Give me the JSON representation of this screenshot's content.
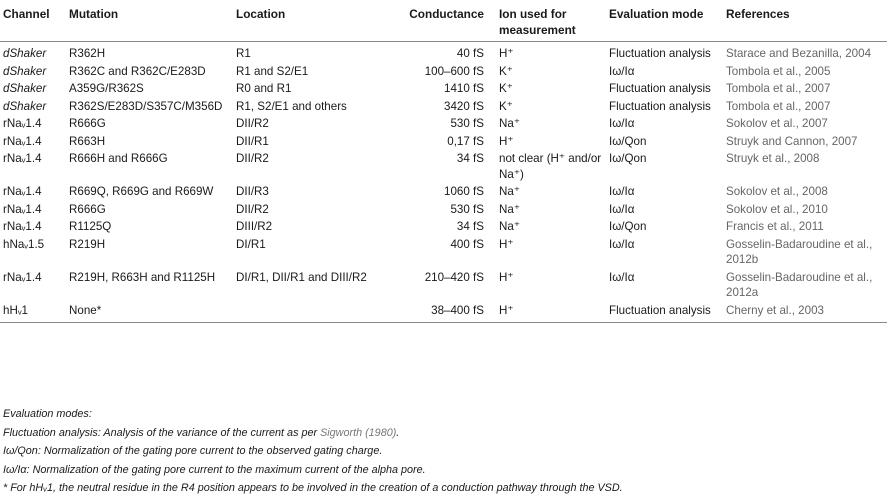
{
  "table": {
    "headers": [
      "Channel",
      "Mutation",
      "Location",
      "Conductance",
      "Ion used for measurement",
      "Evaluation mode",
      "References"
    ],
    "rows": [
      {
        "channel": "dShaker",
        "channel_italic": true,
        "mutation": "R362H",
        "location": "R1",
        "conductance": "40 fS",
        "ion": "H⁺",
        "mode": "Fluctuation analysis",
        "reference": "Starace and Bezanilla, 2004"
      },
      {
        "channel": "dShaker",
        "channel_italic": true,
        "mutation": "R362C and R362C/E283D",
        "location": "R1 and S2/E1",
        "conductance": "100–600 fS",
        "ion": "K⁺",
        "mode": "Iω/Iα",
        "reference": "Tombola et al., 2005"
      },
      {
        "channel": "dShaker",
        "channel_italic": true,
        "mutation": "A359G/R362S",
        "location": "R0 and R1",
        "conductance": "1410 fS",
        "ion": "K⁺",
        "mode": "Fluctuation analysis",
        "reference": "Tombola et al., 2007"
      },
      {
        "channel": "dShaker",
        "channel_italic": true,
        "mutation": "R362S/E283D/S357C/M356D",
        "location": "R1, S2/E1 and others",
        "conductance": "3420 fS",
        "ion": "K⁺",
        "mode": "Fluctuation analysis",
        "reference": "Tombola et al., 2007"
      },
      {
        "channel": "rNaᵥ1.4",
        "channel_italic": false,
        "mutation": "R666G",
        "location": "DII/R2",
        "conductance": "530 fS",
        "ion": "Na⁺",
        "mode": "Iω/Iα",
        "reference": "Sokolov et al., 2007"
      },
      {
        "channel": "rNaᵥ1.4",
        "channel_italic": false,
        "mutation": "R663H",
        "location": "DII/R1",
        "conductance": "0,17 fS",
        "ion": "H⁺",
        "mode": "Iω/Qon",
        "reference": "Struyk and Cannon, 2007"
      },
      {
        "channel": "rNaᵥ1.4",
        "channel_italic": false,
        "mutation": "R666H and R666G",
        "location": "DII/R2",
        "conductance": "34 fS",
        "ion": "not clear (H⁺ and/or Na⁺)",
        "mode": "Iω/Qon",
        "reference": "Struyk et al., 2008"
      },
      {
        "channel": "rNaᵥ1.4",
        "channel_italic": false,
        "mutation": "R669Q, R669G and R669W",
        "location": "DII/R3",
        "conductance": "1060 fS",
        "ion": "Na⁺",
        "mode": "Iω/Iα",
        "reference": "Sokolov et al., 2008"
      },
      {
        "channel": "rNaᵥ1.4",
        "channel_italic": false,
        "mutation": "R666G",
        "location": "DII/R2",
        "conductance": "530 fS",
        "ion": "Na⁺",
        "mode": "Iω/Iα",
        "reference": "Sokolov et al., 2010"
      },
      {
        "channel": "rNaᵥ1.4",
        "channel_italic": false,
        "mutation": "R1125Q",
        "location": "DIII/R2",
        "conductance": "34 fS",
        "ion": "Na⁺",
        "mode": "Iω/Qon",
        "reference": "Francis et al., 2011"
      },
      {
        "channel": "hNaᵥ1.5",
        "channel_italic": false,
        "mutation": "R219H",
        "location": "DI/R1",
        "conductance": "400 fS",
        "ion": "H⁺",
        "mode": "Iω/Iα",
        "reference": "Gosselin-Badaroudine et al., 2012b"
      },
      {
        "channel": "rNaᵥ1.4",
        "channel_italic": false,
        "mutation": "R219H, R663H and R1125H",
        "location": "DI/R1, DII/R1 and DIII/R2",
        "conductance": "210–420 fS",
        "ion": "H⁺",
        "mode": "Iω/Iα",
        "reference": "Gosselin-Badaroudine et al., 2012a"
      },
      {
        "channel": "hHᵥ1",
        "channel_italic": false,
        "mutation": "None*",
        "location": "",
        "conductance": "38–400 fS",
        "ion": "H⁺",
        "mode": "Fluctuation analysis",
        "reference": "Cherny et al., 2003"
      }
    ]
  },
  "notes": {
    "heading": "Evaluation modes:",
    "fluct_prefix": "Fluctuation analysis: Analysis of the variance of the current as per ",
    "fluct_cite": "Sigworth (1980)",
    "fluct_suffix": ".",
    "qon_text": "Iω/Qon: Normalization of the gating pore current to the observed gating charge.",
    "ia_text": "Iω/Iα: Normalization of the gating pore current to the maximum current of the alpha pore.",
    "footnote": "* For hHᵥ1, the neutral residue in the R4 position appears to be involved in the creation of a conduction pathway through the VSD."
  }
}
